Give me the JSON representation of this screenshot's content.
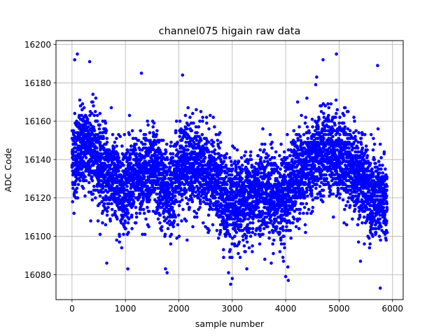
{
  "chart_data": {
    "type": "scatter",
    "title": "channel075 higain raw data",
    "xlabel": "sample number",
    "ylabel": "ADC Code",
    "xlim": [
      -300,
      6200
    ],
    "ylim": [
      16067,
      16202
    ],
    "xticks": [
      0,
      1000,
      2000,
      3000,
      4000,
      5000,
      6000
    ],
    "yticks": [
      16080,
      16100,
      16120,
      16140,
      16160,
      16180,
      16200
    ],
    "grid": true,
    "marker_color": "#0000ff",
    "n_points": 5900,
    "x_range": [
      0,
      5900
    ],
    "band_center": [
      {
        "x": 0,
        "y": 16140
      },
      {
        "x": 300,
        "y": 16148
      },
      {
        "x": 600,
        "y": 16135
      },
      {
        "x": 900,
        "y": 16125
      },
      {
        "x": 1200,
        "y": 16130
      },
      {
        "x": 1500,
        "y": 16135
      },
      {
        "x": 1800,
        "y": 16122
      },
      {
        "x": 2100,
        "y": 16140
      },
      {
        "x": 2400,
        "y": 16135
      },
      {
        "x": 2700,
        "y": 16128
      },
      {
        "x": 3000,
        "y": 16115
      },
      {
        "x": 3300,
        "y": 16120
      },
      {
        "x": 3600,
        "y": 16125
      },
      {
        "x": 3900,
        "y": 16118
      },
      {
        "x": 4200,
        "y": 16130
      },
      {
        "x": 4500,
        "y": 16138
      },
      {
        "x": 4800,
        "y": 16145
      },
      {
        "x": 5100,
        "y": 16140
      },
      {
        "x": 5400,
        "y": 16130
      },
      {
        "x": 5700,
        "y": 16120
      },
      {
        "x": 5900,
        "y": 16118
      }
    ],
    "band_spread": 11,
    "outliers": [
      {
        "x": 100,
        "y": 16195
      },
      {
        "x": 50,
        "y": 16192
      },
      {
        "x": 330,
        "y": 16191
      },
      {
        "x": 4950,
        "y": 16195
      },
      {
        "x": 4700,
        "y": 16192
      },
      {
        "x": 5720,
        "y": 16189
      },
      {
        "x": 1300,
        "y": 16185
      },
      {
        "x": 2070,
        "y": 16184
      },
      {
        "x": 4580,
        "y": 16183
      },
      {
        "x": 2930,
        "y": 16081
      },
      {
        "x": 2970,
        "y": 16075
      },
      {
        "x": 3000,
        "y": 16078
      },
      {
        "x": 4000,
        "y": 16079
      },
      {
        "x": 4050,
        "y": 16077
      },
      {
        "x": 1750,
        "y": 16083
      },
      {
        "x": 1780,
        "y": 16081
      },
      {
        "x": 5770,
        "y": 16073
      },
      {
        "x": 650,
        "y": 16086
      },
      {
        "x": 3730,
        "y": 16086
      },
      {
        "x": 4040,
        "y": 16084
      },
      {
        "x": 5400,
        "y": 16087
      }
    ]
  }
}
